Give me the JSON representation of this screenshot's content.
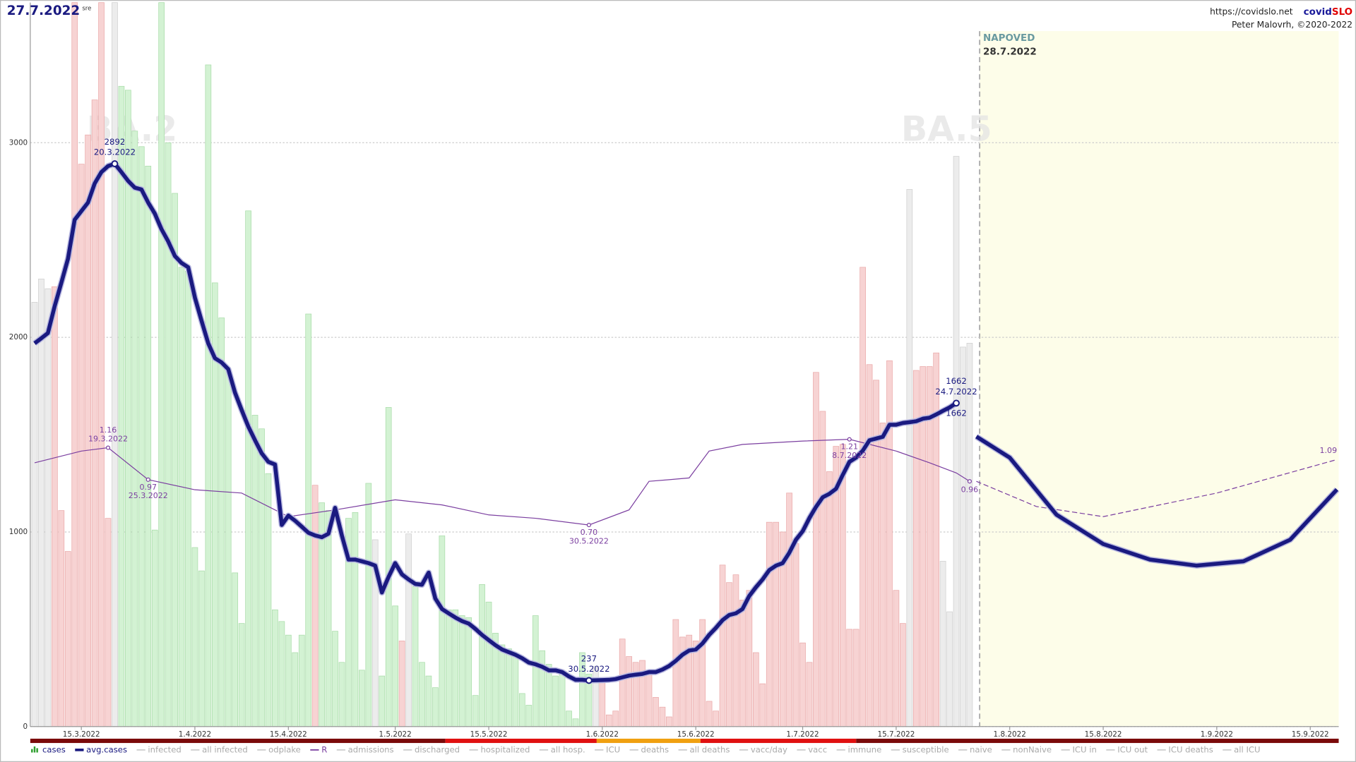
{
  "chart_data": {
    "type": "bar",
    "title": "27.7.2022",
    "subtitle": "sre",
    "url": "https://covidslo.net",
    "brand": [
      "covid",
      "SLO"
    ],
    "author": "Peter Malovrh, ©2020-2022",
    "variants": [
      "BA.2",
      "BA.5"
    ],
    "xlim": [
      "8.3.2022",
      "19.9.2022"
    ],
    "xticks": [
      "15.3.2022",
      "1.4.2022",
      "15.4.2022",
      "1.5.2022",
      "15.5.2022",
      "1.6.2022",
      "15.6.2022",
      "1.7.2022",
      "15.7.2022",
      "1.8.2022",
      "15.8.2022",
      "1.9.2022",
      "15.9.2022"
    ],
    "ylim": [
      0,
      3720
    ],
    "yticks": [
      0,
      1000,
      2000,
      3000
    ],
    "y2lim": [
      -0.5,
      3.81
    ],
    "grid": true,
    "rising_color": "#f7d3d3",
    "falling_color": "#d3f2d3",
    "neutral_color": "#ececec",
    "x": [
      "8.3.2022",
      "9.3.2022",
      "10.3.2022",
      "11.3.2022",
      "12.3.2022",
      "13.3.2022",
      "14.3.2022",
      "15.3.2022",
      "16.3.2022",
      "17.3.2022",
      "18.3.2022",
      "19.3.2022",
      "20.3.2022",
      "21.3.2022",
      "22.3.2022",
      "23.3.2022",
      "24.3.2022",
      "25.3.2022",
      "26.3.2022",
      "27.3.2022",
      "28.3.2022",
      "29.3.2022",
      "30.3.2022",
      "31.3.2022",
      "1.4.2022",
      "2.4.2022",
      "3.4.2022",
      "4.4.2022",
      "5.4.2022",
      "6.4.2022",
      "7.4.2022",
      "8.4.2022",
      "9.4.2022",
      "10.4.2022",
      "11.4.2022",
      "12.4.2022",
      "13.4.2022",
      "14.4.2022",
      "15.4.2022",
      "16.4.2022",
      "17.4.2022",
      "18.4.2022",
      "19.4.2022",
      "20.4.2022",
      "21.4.2022",
      "22.4.2022",
      "23.4.2022",
      "24.4.2022",
      "25.4.2022",
      "26.4.2022",
      "27.4.2022",
      "28.4.2022",
      "29.4.2022",
      "30.4.2022",
      "1.5.2022",
      "2.5.2022",
      "3.5.2022",
      "4.5.2022",
      "5.5.2022",
      "6.5.2022",
      "7.5.2022",
      "8.5.2022",
      "9.5.2022",
      "10.5.2022",
      "11.5.2022",
      "12.5.2022",
      "13.5.2022",
      "14.5.2022",
      "15.5.2022",
      "16.5.2022",
      "17.5.2022",
      "18.5.2022",
      "19.5.2022",
      "20.5.2022",
      "21.5.2022",
      "22.5.2022",
      "23.5.2022",
      "24.5.2022",
      "25.5.2022",
      "26.5.2022",
      "27.5.2022",
      "28.5.2022",
      "29.5.2022",
      "30.5.2022",
      "31.5.2022",
      "1.6.2022",
      "2.6.2022",
      "3.6.2022",
      "4.6.2022",
      "5.6.2022",
      "6.6.2022",
      "7.6.2022",
      "8.6.2022",
      "9.6.2022",
      "10.6.2022",
      "11.6.2022",
      "12.6.2022",
      "13.6.2022",
      "14.6.2022",
      "15.6.2022",
      "16.6.2022",
      "17.6.2022",
      "18.6.2022",
      "19.6.2022",
      "20.6.2022",
      "21.6.2022",
      "22.6.2022",
      "23.6.2022",
      "24.6.2022",
      "25.6.2022",
      "26.6.2022",
      "27.6.2022",
      "28.6.2022",
      "29.6.2022",
      "30.6.2022",
      "1.7.2022",
      "2.7.2022",
      "3.7.2022",
      "4.7.2022",
      "5.7.2022",
      "6.7.2022",
      "7.7.2022",
      "8.7.2022",
      "9.7.2022",
      "10.7.2022",
      "11.7.2022",
      "12.7.2022",
      "13.7.2022",
      "14.7.2022",
      "15.7.2022",
      "16.7.2022",
      "17.7.2022",
      "18.7.2022",
      "19.7.2022",
      "20.7.2022",
      "21.7.2022",
      "22.7.2022",
      "23.7.2022",
      "24.7.2022",
      "25.7.2022",
      "26.7.2022"
    ],
    "series": [
      {
        "name": "cases",
        "color": "#2e9e2e",
        "values": [
          2180,
          2300,
          2250,
          2260,
          1110,
          900,
          3720,
          2890,
          3040,
          3220,
          3720,
          1070,
          3720,
          3290,
          3270,
          3060,
          2980,
          2880,
          1010,
          3720,
          3000,
          2740,
          2360,
          2340,
          920,
          800,
          3400,
          2280,
          2100,
          1830,
          790,
          530,
          2650,
          1600,
          1530,
          1300,
          600,
          540,
          470,
          380,
          470,
          2120,
          1240,
          1150,
          1110,
          490,
          330,
          1070,
          1100,
          290,
          1250,
          960,
          260,
          1640,
          620,
          440,
          990,
          720,
          330,
          260,
          200,
          980,
          600,
          600,
          570,
          560,
          160,
          730,
          640,
          480,
          420,
          400,
          370,
          170,
          110,
          570,
          390,
          320,
          260,
          270,
          80,
          40,
          380,
          270,
          310,
          250,
          60,
          80,
          450,
          360,
          330,
          340,
          280,
          150,
          100,
          50,
          550,
          460,
          470,
          440,
          550,
          130,
          80,
          830,
          740,
          780,
          650,
          700,
          380,
          220,
          1050,
          1050,
          1000,
          1200,
          940,
          430,
          330,
          1820,
          1620,
          1310,
          1440,
          1450,
          500,
          500,
          2360,
          1860,
          1780,
          1560,
          1880,
          700,
          530,
          2760,
          1830,
          1850,
          1850,
          1920,
          850,
          590,
          2930,
          1950,
          1970
        ]
      },
      {
        "name": "avg.cases",
        "color": "#1a1a80",
        "values": [
          1969,
          1995,
          2022,
          2160,
          2280,
          2404,
          2604,
          2649,
          2693,
          2791,
          2849,
          2880,
          2892,
          2849,
          2804,
          2769,
          2760,
          2693,
          2636,
          2556,
          2493,
          2418,
          2382,
          2360,
          2204,
          2084,
          1969,
          1893,
          1871,
          1836,
          1716,
          1627,
          1542,
          1471,
          1404,
          1360,
          1347,
          1036,
          1084,
          1058,
          1027,
          996,
          982,
          973,
          991,
          1124,
          982,
          858,
          858,
          849,
          840,
          827,
          689,
          769,
          840,
          782,
          756,
          733,
          729,
          791,
          658,
          604,
          582,
          560,
          542,
          529,
          502,
          471,
          444,
          418,
          396,
          382,
          369,
          351,
          329,
          320,
          307,
          289,
          289,
          280,
          258,
          240,
          240,
          237,
          238,
          239,
          240,
          244,
          253,
          262,
          267,
          271,
          280,
          280,
          293,
          311,
          338,
          369,
          391,
          396,
          427,
          471,
          507,
          547,
          573,
          582,
          604,
          671,
          716,
          756,
          804,
          827,
          840,
          893,
          960,
          1004,
          1071,
          1129,
          1178,
          1196,
          1222,
          1293,
          1360,
          1382,
          1418,
          1471,
          1480,
          1489,
          1551,
          1551,
          1560,
          1564,
          1569,
          1582,
          1587,
          1604,
          1622,
          1640,
          1662,
          null,
          null
        ],
        "annotations": [
          {
            "date": "20.3.2022",
            "label": "2892"
          },
          {
            "date": "30.5.2022",
            "label": "237"
          },
          {
            "date": "24.7.2022",
            "label": "1662",
            "label_below": "1662"
          }
        ]
      },
      {
        "name": "R",
        "color": "#7b3fa0",
        "axis": "y2",
        "x": [
          "8.3.2022",
          "15.3.2022",
          "19.3.2022",
          "25.3.2022",
          "1.4.2022",
          "8.4.2022",
          "15.4.2022",
          "22.4.2022",
          "1.5.2022",
          "8.5.2022",
          "15.5.2022",
          "22.5.2022",
          "30.5.2022",
          "5.6.2022",
          "8.6.2022",
          "11.6.2022",
          "14.6.2022",
          "17.6.2022",
          "22.6.2022",
          "1.7.2022",
          "8.7.2022",
          "15.7.2022",
          "20.7.2022",
          "24.7.2022",
          "26.7.2022"
        ],
        "values": [
          1.07,
          1.14,
          1.16,
          0.97,
          0.91,
          0.89,
          0.75,
          0.79,
          0.85,
          0.82,
          0.76,
          0.74,
          0.7,
          0.79,
          0.96,
          0.97,
          0.98,
          1.14,
          1.18,
          1.2,
          1.21,
          1.14,
          1.07,
          1.01,
          0.96
        ],
        "annotations": [
          {
            "date": "19.3.2022",
            "label": "1.16"
          },
          {
            "date": "25.3.2022",
            "label": "0.97"
          },
          {
            "date": "30.5.2022",
            "label": "0.70"
          },
          {
            "date": "8.7.2022",
            "label": "1.21"
          }
        ],
        "end_label": "0.96"
      }
    ],
    "forecast": {
      "title": "NAPOVED",
      "date": "28.7.2022",
      "background": "#fdfde9",
      "x": [
        "27.7.2022",
        "1.8.2022",
        "8.8.2022",
        "15.8.2022",
        "22.8.2022",
        "29.8.2022",
        "5.9.2022",
        "12.9.2022",
        "19.9.2022"
      ],
      "avg": [
        1490,
        1382,
        1089,
        938,
        858,
        827,
        849,
        960,
        1218
      ],
      "r_x": [
        "27.7.2022",
        "5.8.2022",
        "15.8.2022",
        "1.9.2022",
        "19.9.2022"
      ],
      "R": [
        0.96,
        0.81,
        0.75,
        0.89,
        1.09
      ],
      "end_label": "1.09"
    },
    "legend_extra": [
      "infected",
      "all infected",
      "odplake",
      "admissions",
      "discharged",
      "hospitalized",
      "all hosp.",
      "ICU",
      "deaths",
      "all deaths",
      "vacc/day",
      "vacc",
      "immune",
      "susceptible",
      "naive",
      "nonNaive",
      "ICU in",
      "ICU out",
      "ICU deaths",
      "all ICU"
    ]
  }
}
